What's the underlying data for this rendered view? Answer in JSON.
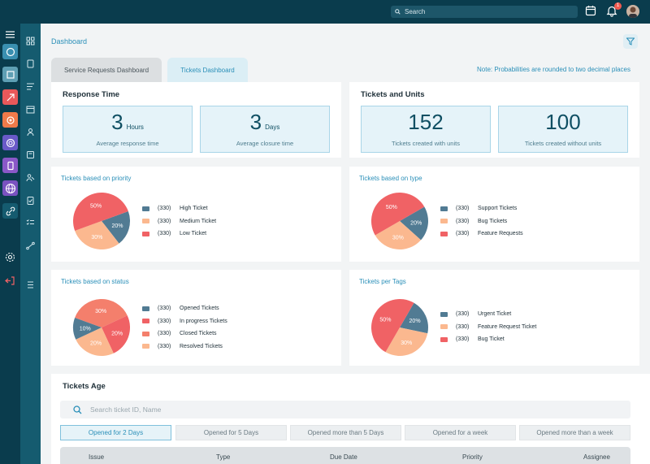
{
  "topbar": {
    "search_placeholder": "Search",
    "notification_count": "1"
  },
  "breadcrumb": "Dashboard",
  "tabs": [
    {
      "label": "Service Requests Dashboard",
      "active": false
    },
    {
      "label": "Tickets Dashboard",
      "active": true
    }
  ],
  "note": "Note: Probabilities are rounded to two decimal places",
  "response_time": {
    "title": "Response Time",
    "metrics": [
      {
        "value": "3",
        "unit": "Hours",
        "label": "Average response time"
      },
      {
        "value": "3",
        "unit": "Days",
        "label": "Average closure time"
      }
    ]
  },
  "tickets_units": {
    "title": "Tickets and Units",
    "metrics": [
      {
        "value": "152",
        "label": "Tickets created with units"
      },
      {
        "value": "100",
        "label": "Tickets created without units"
      }
    ]
  },
  "pies": [
    {
      "title": "Tickets based on priority",
      "slices": [
        {
          "count": "(330)",
          "label": "High Ticket",
          "pct": "20%",
          "value": 20,
          "color": "#517b93"
        },
        {
          "count": "(330)",
          "label": "Medium Ticket",
          "pct": "30%",
          "value": 30,
          "color": "#fbb88f"
        },
        {
          "count": "(330)",
          "label": "Low Ticket",
          "pct": "50%",
          "value": 50,
          "color": "#f06265"
        }
      ]
    },
    {
      "title": "Tickets based on type",
      "slices": [
        {
          "count": "(330)",
          "label": "Support Tickets",
          "pct": "20%",
          "value": 20,
          "color": "#517b93"
        },
        {
          "count": "(330)",
          "label": "Bug Tickets",
          "pct": "30%",
          "value": 30,
          "color": "#fbb88f"
        },
        {
          "count": "(330)",
          "label": "Feature Requests",
          "pct": "50%",
          "value": 50,
          "color": "#f06265"
        }
      ]
    },
    {
      "title": "Tickets based on status",
      "slices": [
        {
          "count": "(330)",
          "label": "Opened Tickets",
          "pct": "10%",
          "value": 10,
          "color": "#517b93"
        },
        {
          "count": "(330)",
          "label": "In progress Tickets",
          "pct": "20%",
          "value": 20,
          "color": "#f06265"
        },
        {
          "count": "(330)",
          "label": "Closed Tickets",
          "pct": "30%",
          "value": 30,
          "color": "#f47f6c"
        },
        {
          "count": "(330)",
          "label": "Resolved Tickets",
          "pct": "20%",
          "value": 20,
          "color": "#fbb88f"
        }
      ],
      "order": [
        2,
        1,
        3,
        0
      ],
      "labels_pct": [
        "20%",
        "30%",
        "20%",
        "10%"
      ]
    },
    {
      "title": "Tickets per Tags",
      "slices": [
        {
          "count": "(330)",
          "label": "Urgent Ticket",
          "pct": "20%",
          "value": 20,
          "color": "#517b93"
        },
        {
          "count": "(330)",
          "label": "Feature Request Ticket",
          "pct": "30%",
          "value": 30,
          "color": "#fbb88f"
        },
        {
          "count": "(330)",
          "label": "Bug Ticket",
          "pct": "50%",
          "value": 50,
          "color": "#f06265"
        }
      ]
    }
  ],
  "tickets_age": {
    "title": "Tickets Age",
    "search_placeholder": "Search ticket ID, Name",
    "filters": [
      "Opened for 2 Days",
      "Opened for 5 Days",
      "Opened more than 5 Days",
      "Opened for a week",
      "Opened more than a week"
    ],
    "columns": [
      "Issue",
      "Type",
      "Due Date",
      "Priority",
      "Assignee"
    ]
  }
}
